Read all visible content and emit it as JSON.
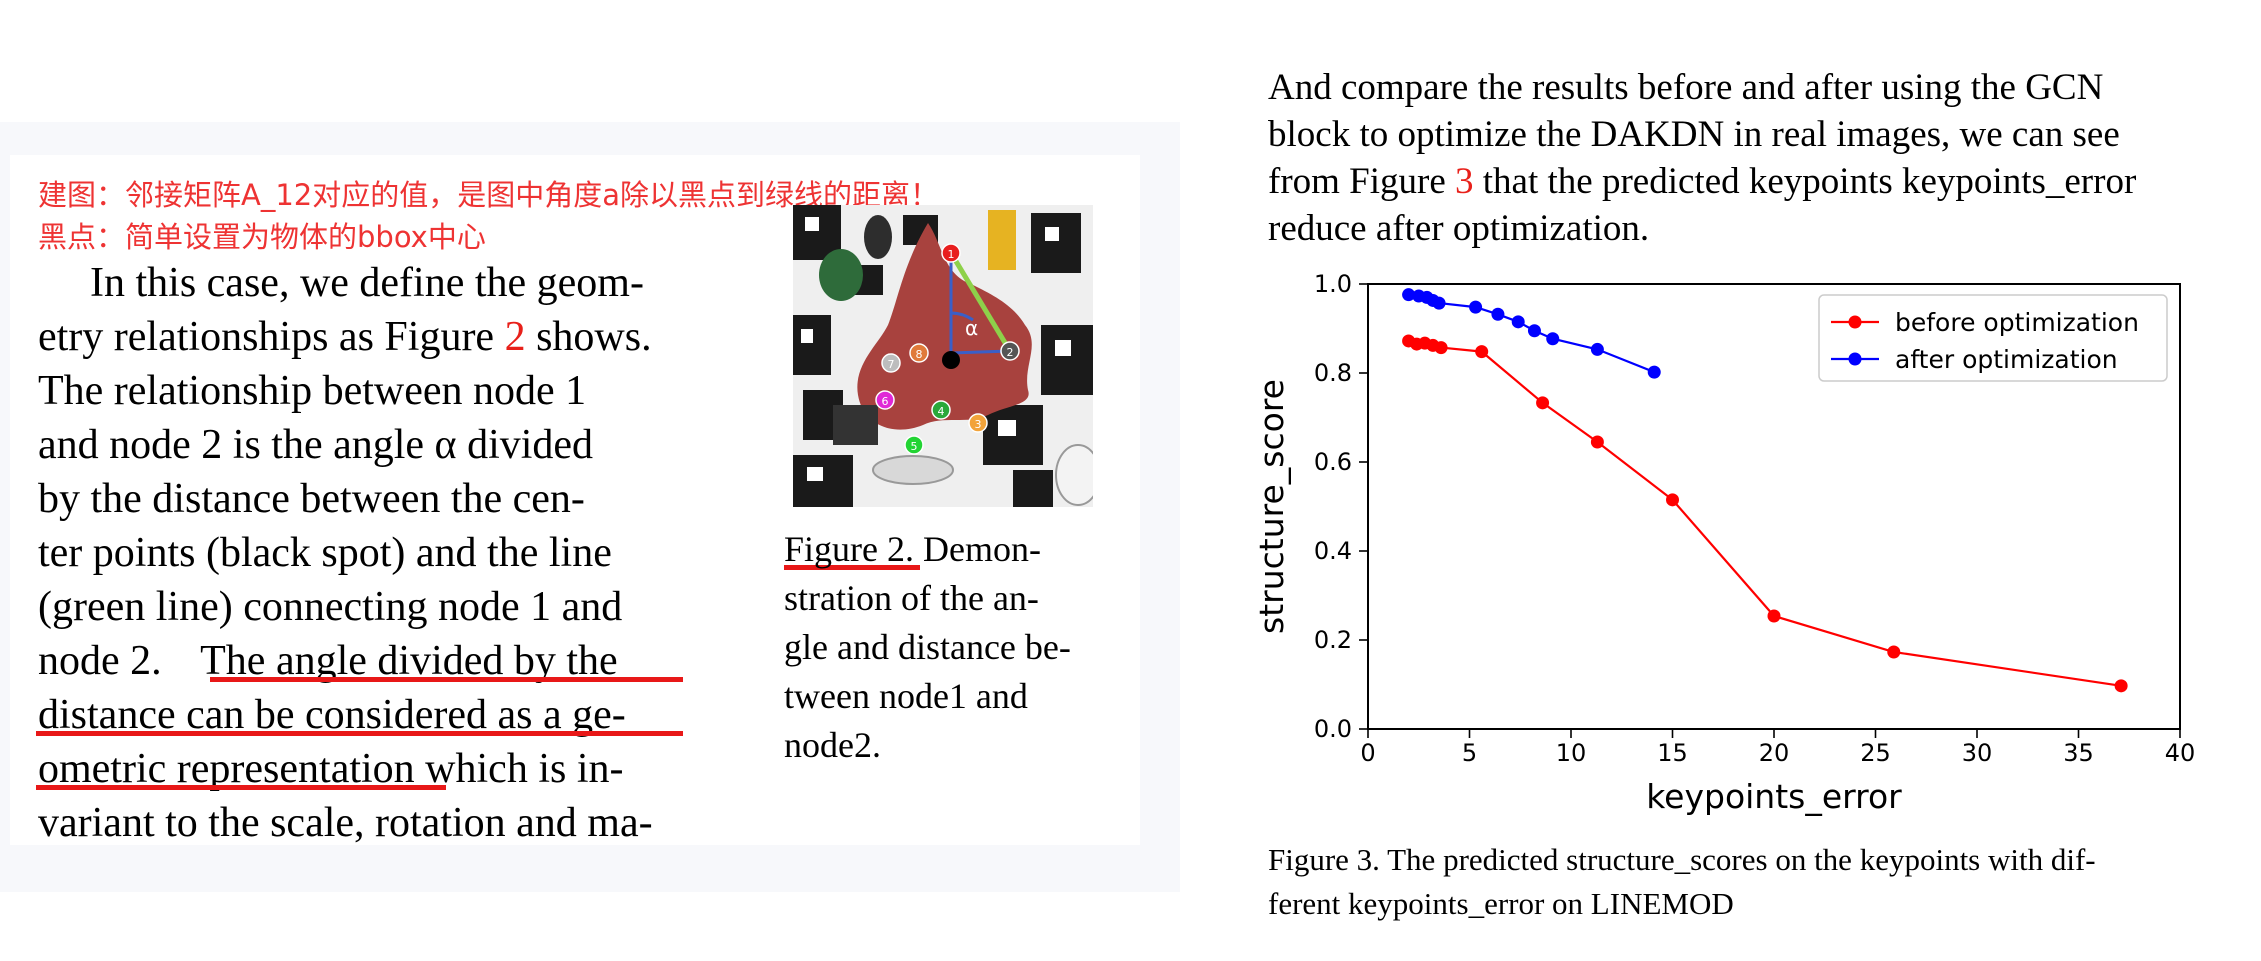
{
  "annotation": {
    "line1": "建图：邻接矩阵A_12对应的值，是图中角度a除以黑点到绿线的距离！",
    "line2": "黑点：简单设置为物体的bbox中心"
  },
  "left_paragraph": {
    "lines": [
      "In this case, we define the geom-",
      "etry relationships as Figure ",
      "The relationship between node 1",
      "and node 2 is the angle α divided",
      "by the distance between the cen-",
      "ter points (black spot) and the line",
      "(green line) connecting node 1 and",
      "node 2. ",
      "distance can be considered as a ge-",
      "ometric representation",
      "variant to the scale, rotation and ma-"
    ],
    "fig_ref": "2",
    "shows": " shows.",
    "highlight_1": "The angle divided by the",
    "line10_tail": " which is in-"
  },
  "figure2": {
    "caption_label": "Figure 2",
    "caption_lines": [
      ".   Demon-",
      "stration of the an-",
      "gle and distance be-",
      "tween  node1  and",
      "node2."
    ],
    "alpha_label": "α",
    "node_labels": [
      "1",
      "2",
      "3",
      "4",
      "5",
      "6",
      "7",
      "8"
    ]
  },
  "right_paragraph": {
    "lines": [
      "And compare the results before and after using the GCN",
      "block to optimize the DAKDN in real images, we can see",
      "from Figure ",
      "reduce after optimization."
    ],
    "fig_ref": "3",
    "line3_tail": " that the predicted keypoints keypoints_error"
  },
  "figure3": {
    "caption_lines": [
      "Figure 3. The predicted structure_scores on the keypoints with dif-",
      "ferent keypoints_error on LINEMOD"
    ]
  },
  "chart_data": {
    "type": "line",
    "xlabel": "keypoints_error",
    "ylabel": "structure_score",
    "xlim": [
      0,
      40
    ],
    "ylim": [
      0,
      1.0
    ],
    "xticks": [
      0,
      5,
      10,
      15,
      20,
      25,
      30,
      35,
      40
    ],
    "yticks": [
      0.0,
      0.2,
      0.4,
      0.6,
      0.8,
      1.0
    ],
    "legend_position": "top-right",
    "grid": false,
    "series": [
      {
        "name": "before optimization",
        "color": "#ff0000",
        "x": [
          2.0,
          2.4,
          2.8,
          3.2,
          3.6,
          5.6,
          8.6,
          11.3,
          15.0,
          20.0,
          25.9,
          37.1
        ],
        "y": [
          0.872,
          0.865,
          0.867,
          0.862,
          0.857,
          0.848,
          0.733,
          0.645,
          0.515,
          0.254,
          0.173,
          0.097
        ]
      },
      {
        "name": "after optimization",
        "color": "#0000ff",
        "x": [
          2.0,
          2.5,
          2.9,
          3.2,
          3.5,
          5.3,
          6.4,
          7.4,
          8.2,
          9.1,
          11.3,
          14.1
        ],
        "y": [
          0.976,
          0.973,
          0.97,
          0.963,
          0.957,
          0.948,
          0.932,
          0.915,
          0.895,
          0.877,
          0.853,
          0.802
        ]
      }
    ]
  }
}
